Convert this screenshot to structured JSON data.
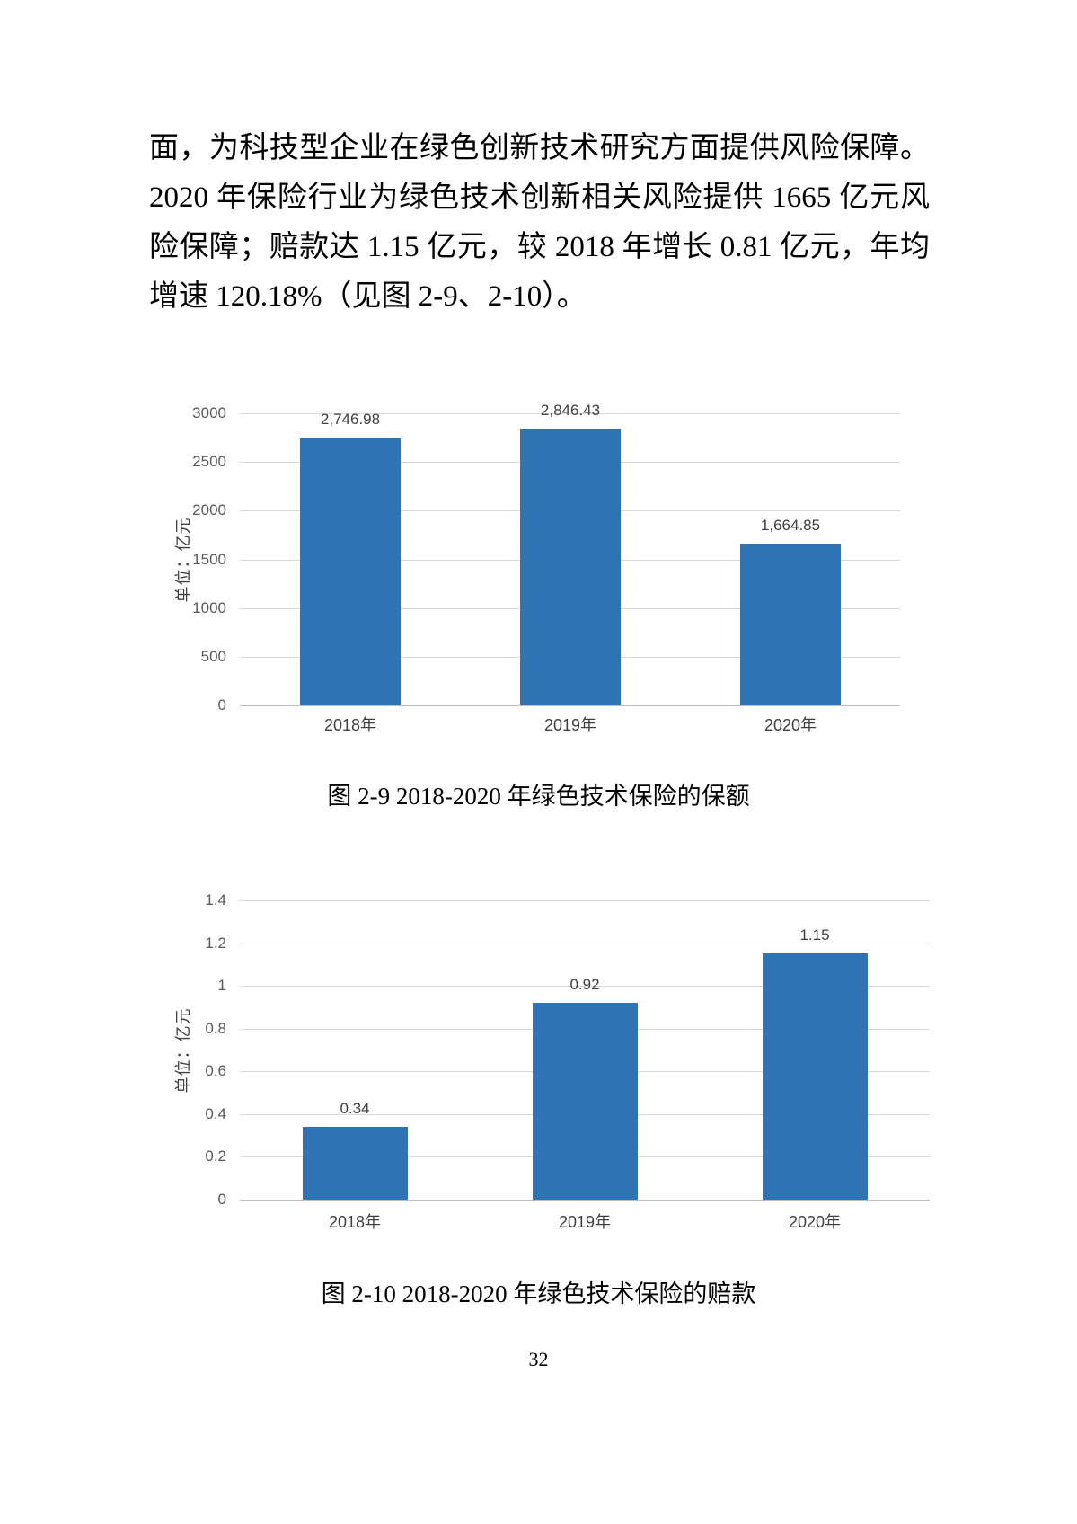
{
  "page": {
    "number": "32"
  },
  "paragraph": {
    "lines": [
      "面，为科技型企业在绿色创新技术研究方面提供风险保障。",
      "2020 年保险行业为绿色技术创新相关风险提供 1665 亿元风",
      "险保障；赔款达 1.15 亿元，较 2018 年增长 0.81 亿元，年均",
      "增速 120.18%（见图 2-9、2-10）。"
    ]
  },
  "chart_data": [
    {
      "type": "bar",
      "caption": "图 2-9  2018-2020 年绿色技术保险的保额",
      "categories": [
        "2018年",
        "2019年",
        "2020年"
      ],
      "values": [
        2746.98,
        2846.43,
        1664.85
      ],
      "value_labels": [
        "2,746.98",
        "2,846.43",
        "1,664.85"
      ],
      "ylabel": "单位：亿元",
      "ylim": [
        0,
        3000
      ],
      "ytick_step": 500,
      "yticks": [
        "0",
        "500",
        "1000",
        "1500",
        "2000",
        "2500",
        "3000"
      ],
      "grid": true,
      "legend": "none",
      "bar_color": "#2E74B5",
      "gridline_color": "#D9D9D9",
      "axis_line_color": "#BFBFBF"
    },
    {
      "type": "bar",
      "caption": "图 2-10  2018-2020 年绿色技术保险的赔款",
      "categories": [
        "2018年",
        "2019年",
        "2020年"
      ],
      "values": [
        0.34,
        0.92,
        1.15
      ],
      "value_labels": [
        "0.34",
        "0.92",
        "1.15"
      ],
      "ylabel": "单位：亿元",
      "ylim": [
        0,
        1.4
      ],
      "ytick_step": 0.2,
      "yticks": [
        "0",
        "0.2",
        "0.4",
        "0.6",
        "0.8",
        "1",
        "1.2",
        "1.4"
      ],
      "grid": true,
      "legend": "none",
      "bar_color": "#2E74B5",
      "gridline_color": "#D9D9D9",
      "axis_line_color": "#BFBFBF"
    }
  ]
}
